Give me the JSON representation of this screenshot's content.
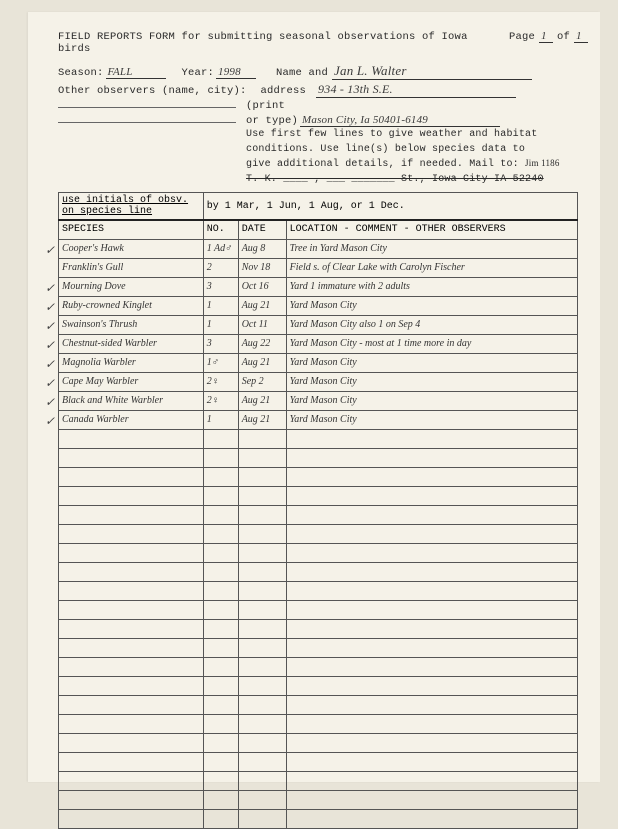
{
  "header": {
    "title": "FIELD REPORTS FORM for submitting seasonal observations of Iowa birds",
    "page_label": "Page",
    "page_cur": "1",
    "page_of": "of",
    "page_tot": "1",
    "season_label": "Season:",
    "season": "FALL",
    "year_label": "Year:",
    "year": "1998",
    "name_label": "Name and",
    "name": "Jan L. Walter",
    "other_label": "Other observers (name, city):",
    "addr_label1": "address",
    "addr_label2": "(print",
    "addr_label3": "or type)",
    "addr1": "934 - 13th S.E.",
    "addr2": "Mason City, Ia 50401-6149",
    "instr1": "Use first few lines to give weather and habitat",
    "instr2": "conditions. Use line(s) below species data to",
    "instr3": "give additional details, if needed. Mail to:",
    "mailto_hand": "Jim 1186",
    "strike1": "T. K. ____ , ___ _______ St., Iowa City IA 52240",
    "subhdr": "use initials of obsv. on species line",
    "deadline": "by 1 Mar, 1 Jun, 1 Aug, or 1 Dec."
  },
  "columns": {
    "species": "SPECIES",
    "no": "NO.",
    "date": "DATE",
    "loc": "LOCATION - COMMENT - OTHER OBSERVERS"
  },
  "rows": [
    {
      "chk": "✓",
      "sp": "Cooper's Hawk",
      "no": "1 Ad♂",
      "dt": "Aug 8",
      "loc": "Tree in Yard  Mason City"
    },
    {
      "chk": "",
      "sp": "Franklin's Gull",
      "no": "2",
      "dt": "Nov 18",
      "loc": "Field s. of Clear Lake with Carolyn Fischer"
    },
    {
      "chk": "✓",
      "sp": "Mourning Dove",
      "no": "3",
      "dt": "Oct 16",
      "loc": "Yard  1 immature with 2 adults"
    },
    {
      "chk": "✓",
      "sp": "Ruby-crowned Kinglet",
      "no": "1",
      "dt": "Aug 21",
      "loc": "Yard  Mason City"
    },
    {
      "chk": "✓",
      "sp": "Swainson's Thrush",
      "no": "1",
      "dt": "Oct 11",
      "loc": "Yard  Mason City  also 1 on Sep 4"
    },
    {
      "chk": "✓",
      "sp": "Chestnut-sided Warbler",
      "no": "3",
      "dt": "Aug 22",
      "loc": "Yard Mason City - most at 1 time more in day"
    },
    {
      "chk": "✓",
      "sp": "Magnolia Warbler",
      "no": "1♂",
      "dt": "Aug 21",
      "loc": "Yard  Mason City"
    },
    {
      "chk": "✓",
      "sp": "Cape May Warbler",
      "no": "2♀",
      "dt": "Sep 2",
      "loc": "Yard  Mason City"
    },
    {
      "chk": "✓",
      "sp": "Black and White Warbler",
      "no": "2♀",
      "dt": "Aug 21",
      "loc": "Yard  Mason City"
    },
    {
      "chk": "✓",
      "sp": "Canada Warbler",
      "no": "1",
      "dt": "Aug 21",
      "loc": "Yard  Mason City"
    }
  ],
  "empty_rows": 21
}
